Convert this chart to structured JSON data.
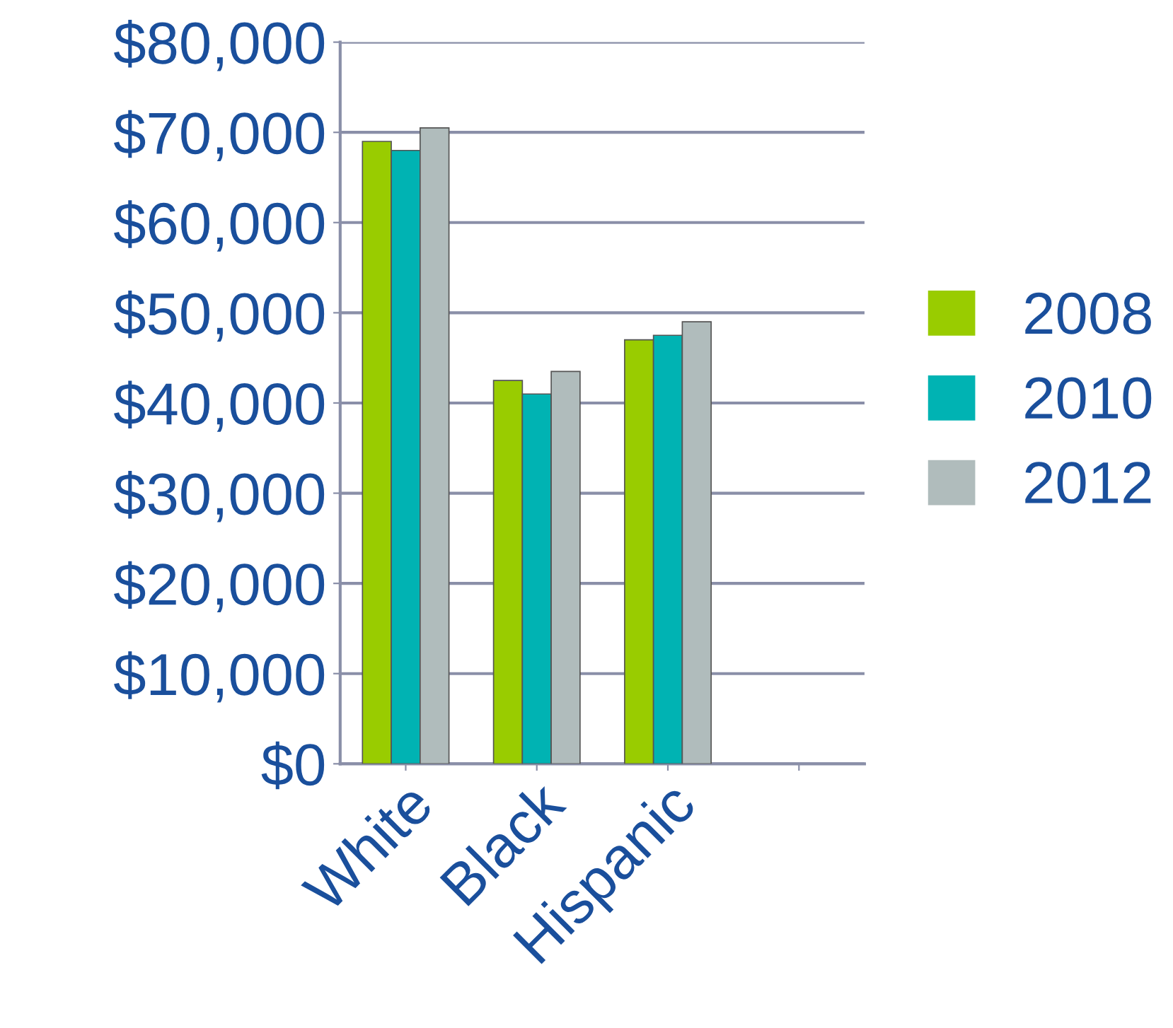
{
  "chart_data": {
    "type": "bar",
    "categories": [
      "White",
      "Black",
      "Hispanic",
      null
    ],
    "series": [
      {
        "name": "2008",
        "color": "#99cc00",
        "values": [
          69000,
          42500,
          47000,
          null
        ]
      },
      {
        "name": "2010",
        "color": "#00b3b3",
        "values": [
          68000,
          41000,
          47500,
          null
        ]
      },
      {
        "name": "2012",
        "color": "#b0bcbc",
        "values": [
          70500,
          43500,
          49000,
          null
        ]
      }
    ],
    "ylim": [
      0,
      80000
    ],
    "yticks": [
      {
        "value": 0,
        "label": "$0"
      },
      {
        "value": 10000,
        "label": "$10,000"
      },
      {
        "value": 20000,
        "label": "$20,000"
      },
      {
        "value": 30000,
        "label": "$30,000"
      },
      {
        "value": 40000,
        "label": "$40,000"
      },
      {
        "value": 50000,
        "label": "$50,000"
      },
      {
        "value": 60000,
        "label": "$60,000"
      },
      {
        "value": 70000,
        "label": "$70,000"
      },
      {
        "value": 80000,
        "label": "$80,000"
      }
    ],
    "grid": "y",
    "legend": "right"
  }
}
